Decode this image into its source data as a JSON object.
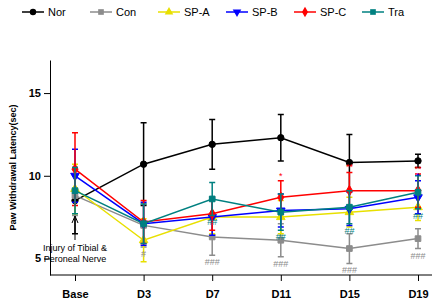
{
  "chart_data": {
    "type": "line",
    "y_label": "Paw Withdrawal Latency(sec)",
    "categories": [
      "Base",
      "D3",
      "D7",
      "D11",
      "D15",
      "D19"
    ],
    "ylim": [
      4,
      17
    ],
    "yticks": [
      5,
      10,
      15
    ],
    "legend": "top",
    "annotation": [
      "Injury of Tibial &",
      "Peroneal Nerve"
    ],
    "series": [
      {
        "name": "Nor",
        "color": "#000000",
        "marker": "circle",
        "values": [
          8.5,
          10.7,
          11.9,
          12.3,
          10.8,
          10.9
        ],
        "errors": [
          2.0,
          2.5,
          1.5,
          1.4,
          1.7,
          0.4
        ],
        "significance": [
          null,
          null,
          null,
          null,
          null,
          null
        ]
      },
      {
        "name": "Con",
        "color": "#8c8c8c",
        "marker": "square",
        "values": [
          8.8,
          7.0,
          6.3,
          6.1,
          5.6,
          6.2
        ],
        "errors": [
          1.2,
          1.3,
          1.1,
          1.0,
          0.9,
          0.6
        ],
        "significance": [
          null,
          "#",
          "###",
          "###",
          "###",
          "###"
        ]
      },
      {
        "name": "SP-A",
        "color": "#e8e000",
        "marker": "triangle-up",
        "values": [
          9.2,
          6.1,
          7.5,
          7.5,
          7.8,
          8.1
        ],
        "errors": [
          1.5,
          1.3,
          1.0,
          1.0,
          0.9,
          0.8
        ],
        "significance": [
          null,
          null,
          null,
          null,
          null,
          null
        ]
      },
      {
        "name": "SP-B",
        "color": "#0000ff",
        "marker": "triangle-down",
        "values": [
          10.0,
          7.1,
          7.5,
          7.9,
          8.0,
          8.7
        ],
        "errors": [
          1.6,
          1.3,
          1.1,
          1.0,
          1.0,
          1.0
        ],
        "significance": [
          null,
          null,
          null,
          null,
          null,
          "*"
        ]
      },
      {
        "name": "SP-C",
        "color": "#ff0000",
        "marker": "diamond",
        "values": [
          10.4,
          7.2,
          7.7,
          8.7,
          9.1,
          9.1
        ],
        "errors": [
          2.2,
          1.3,
          1.0,
          1.0,
          1.1,
          1.0
        ],
        "significance": [
          null,
          null,
          null,
          "*",
          "**",
          "**"
        ]
      },
      {
        "name": "Tra",
        "color": "#008080",
        "marker": "square",
        "values": [
          9.1,
          7.1,
          8.6,
          7.8,
          8.1,
          9.0
        ],
        "errors": [
          1.4,
          1.2,
          1.0,
          1.1,
          1.0,
          1.0
        ],
        "significance": [
          null,
          null,
          "##",
          "##",
          "##",
          "##"
        ]
      }
    ]
  }
}
